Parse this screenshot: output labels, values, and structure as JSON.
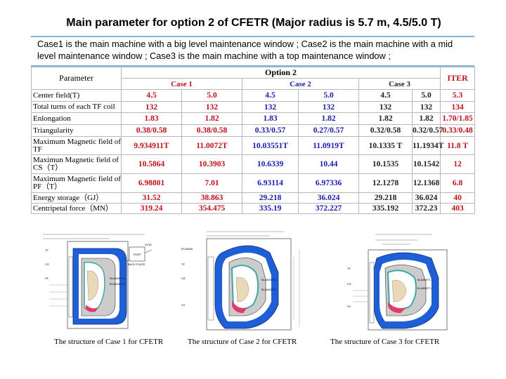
{
  "title": "Main parameter for option 2 of CFETR (Major radius is 5.7 m, 4.5/5.0 T)",
  "description": "Case1 is the main machine with a big level maintenance window ; Case2 is the main machine with a mid level maintenance window ; Case3 is the main machine with a top maintenance window ;",
  "table": {
    "param_header": "Parameter",
    "option_header": "Option 2",
    "case_headers": [
      "Case 1",
      "Case 2",
      "Case 3"
    ],
    "iter_header": "ITER",
    "rows": [
      {
        "param": "Center field(T)",
        "values": [
          "4.5",
          "5.0",
          "4.5",
          "5.0",
          "4.5",
          "5.0"
        ],
        "iter": "5.3"
      },
      {
        "param": "Total turns of each TF coil",
        "values": [
          "132",
          "132",
          "132",
          "132",
          "132",
          "132"
        ],
        "iter": "134"
      },
      {
        "param": "Enlongation",
        "values": [
          "1.83",
          "1.82",
          "1.83",
          "1.82",
          "1.82",
          "1.82"
        ],
        "iter": "1.70/1.85"
      },
      {
        "param": "Triangularity",
        "values": [
          "0.38/0.58",
          "0.38/0.58",
          "0.33/0.57",
          "0.27/0.57",
          "0.32/0.58",
          "0.32/0.57"
        ],
        "iter": "0.33/0.48"
      },
      {
        "param": "Maximum Magnetic field of TF",
        "values": [
          "9.934911T",
          "11.0072T",
          "10.03551T",
          "11.0919T",
          "10.1335 T",
          "11.1934T"
        ],
        "iter": "11.8 T"
      },
      {
        "param": "Maximun Magnetic field of CS（T）",
        "values": [
          "10.5864",
          "10.3903",
          "10.6339",
          "10.44",
          "10.1535",
          "10.1542"
        ],
        "iter": "12"
      },
      {
        "param": "Maximum Magnetic field of PF（T）",
        "values": [
          "6.98801",
          "7.01",
          "6.93114",
          "6.97336",
          "12.1278",
          "12.1368"
        ],
        "iter": "6.8"
      },
      {
        "param": "Energy storage（GJ）",
        "values": [
          "31.52",
          "38.863",
          "29.218",
          "36.024",
          "29.218",
          "36.024"
        ],
        "iter": "40"
      },
      {
        "param": "Centripetal force（MN）",
        "values": [
          "319.24",
          "354.475",
          "335.19",
          "372.227",
          "335.192",
          "372.23"
        ],
        "iter": "403"
      }
    ]
  },
  "figures": {
    "fig1_labels": [
      "PORT",
      "BACK PLATE",
      "VV10",
      "BLANKET-1",
      "BLANKET-2",
      "TF",
      "CS",
      "PF"
    ],
    "fig2_labels": [
      "PLASMA",
      "BLANKET-1",
      "BLANKET-2",
      "TF",
      "CS",
      "VV"
    ],
    "fig3_labels": [
      "BLANKET-1",
      "BLANKET-2",
      "TF",
      "CS",
      "VV"
    ]
  },
  "captions": [
    "The structure of Case 1 for CFETR",
    "The structure of Case 2 for CFETR",
    "The structure of Case 3 for CFETR"
  ],
  "colors": {
    "case1": "#c0101a",
    "case2": "#1a1ab0",
    "case3": "#222222",
    "iter": "#c0101a",
    "separator": "#7ab5d9",
    "blanket_blue": "#1f5fd6",
    "shield_teal": "#3fa9a0",
    "plasma_pink": "#e23a6a"
  }
}
